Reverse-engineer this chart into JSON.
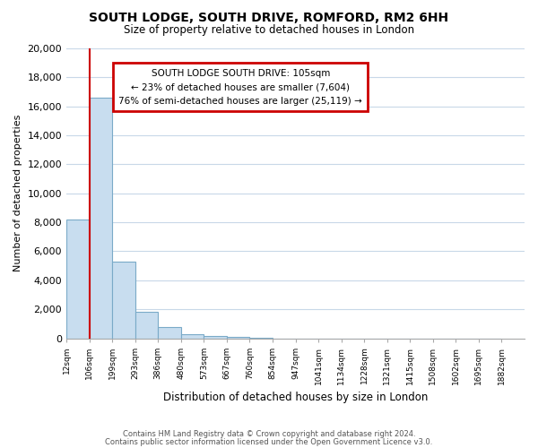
{
  "title": "SOUTH LODGE, SOUTH DRIVE, ROMFORD, RM2 6HH",
  "subtitle": "Size of property relative to detached houses in London",
  "xlabel": "Distribution of detached houses by size in London",
  "ylabel": "Number of detached properties",
  "bar_values": [
    8200,
    16600,
    5300,
    1800,
    800,
    300,
    150,
    100,
    50,
    0,
    0,
    0,
    0,
    0,
    0,
    0,
    0,
    0,
    0
  ],
  "tick_labels": [
    "12sqm",
    "106sqm",
    "199sqm",
    "293sqm",
    "386sqm",
    "480sqm",
    "573sqm",
    "667sqm",
    "760sqm",
    "854sqm",
    "947sqm",
    "1041sqm",
    "1134sqm",
    "1228sqm",
    "1321sqm",
    "1415sqm",
    "1508sqm",
    "1602sqm",
    "1695sqm",
    "1882sqm"
  ],
  "bar_color": "#c8ddef",
  "bar_edge_color": "#7aaac8",
  "ylim": [
    0,
    20000
  ],
  "yticks": [
    0,
    2000,
    4000,
    6000,
    8000,
    10000,
    12000,
    14000,
    16000,
    18000,
    20000
  ],
  "red_line_x": 1,
  "annotation_title": "SOUTH LODGE SOUTH DRIVE: 105sqm",
  "annotation_line1": "← 23% of detached houses are smaller (7,604)",
  "annotation_line2": "76% of semi-detached houses are larger (25,119) →",
  "annotation_box_color": "#ffffff",
  "annotation_box_edge": "#cc0000",
  "footer_line1": "Contains HM Land Registry data © Crown copyright and database right 2024.",
  "footer_line2": "Contains public sector information licensed under the Open Government Licence v3.0.",
  "bg_color": "#ffffff",
  "grid_color": "#c8d8e8",
  "fig_width": 6.0,
  "fig_height": 5.0
}
